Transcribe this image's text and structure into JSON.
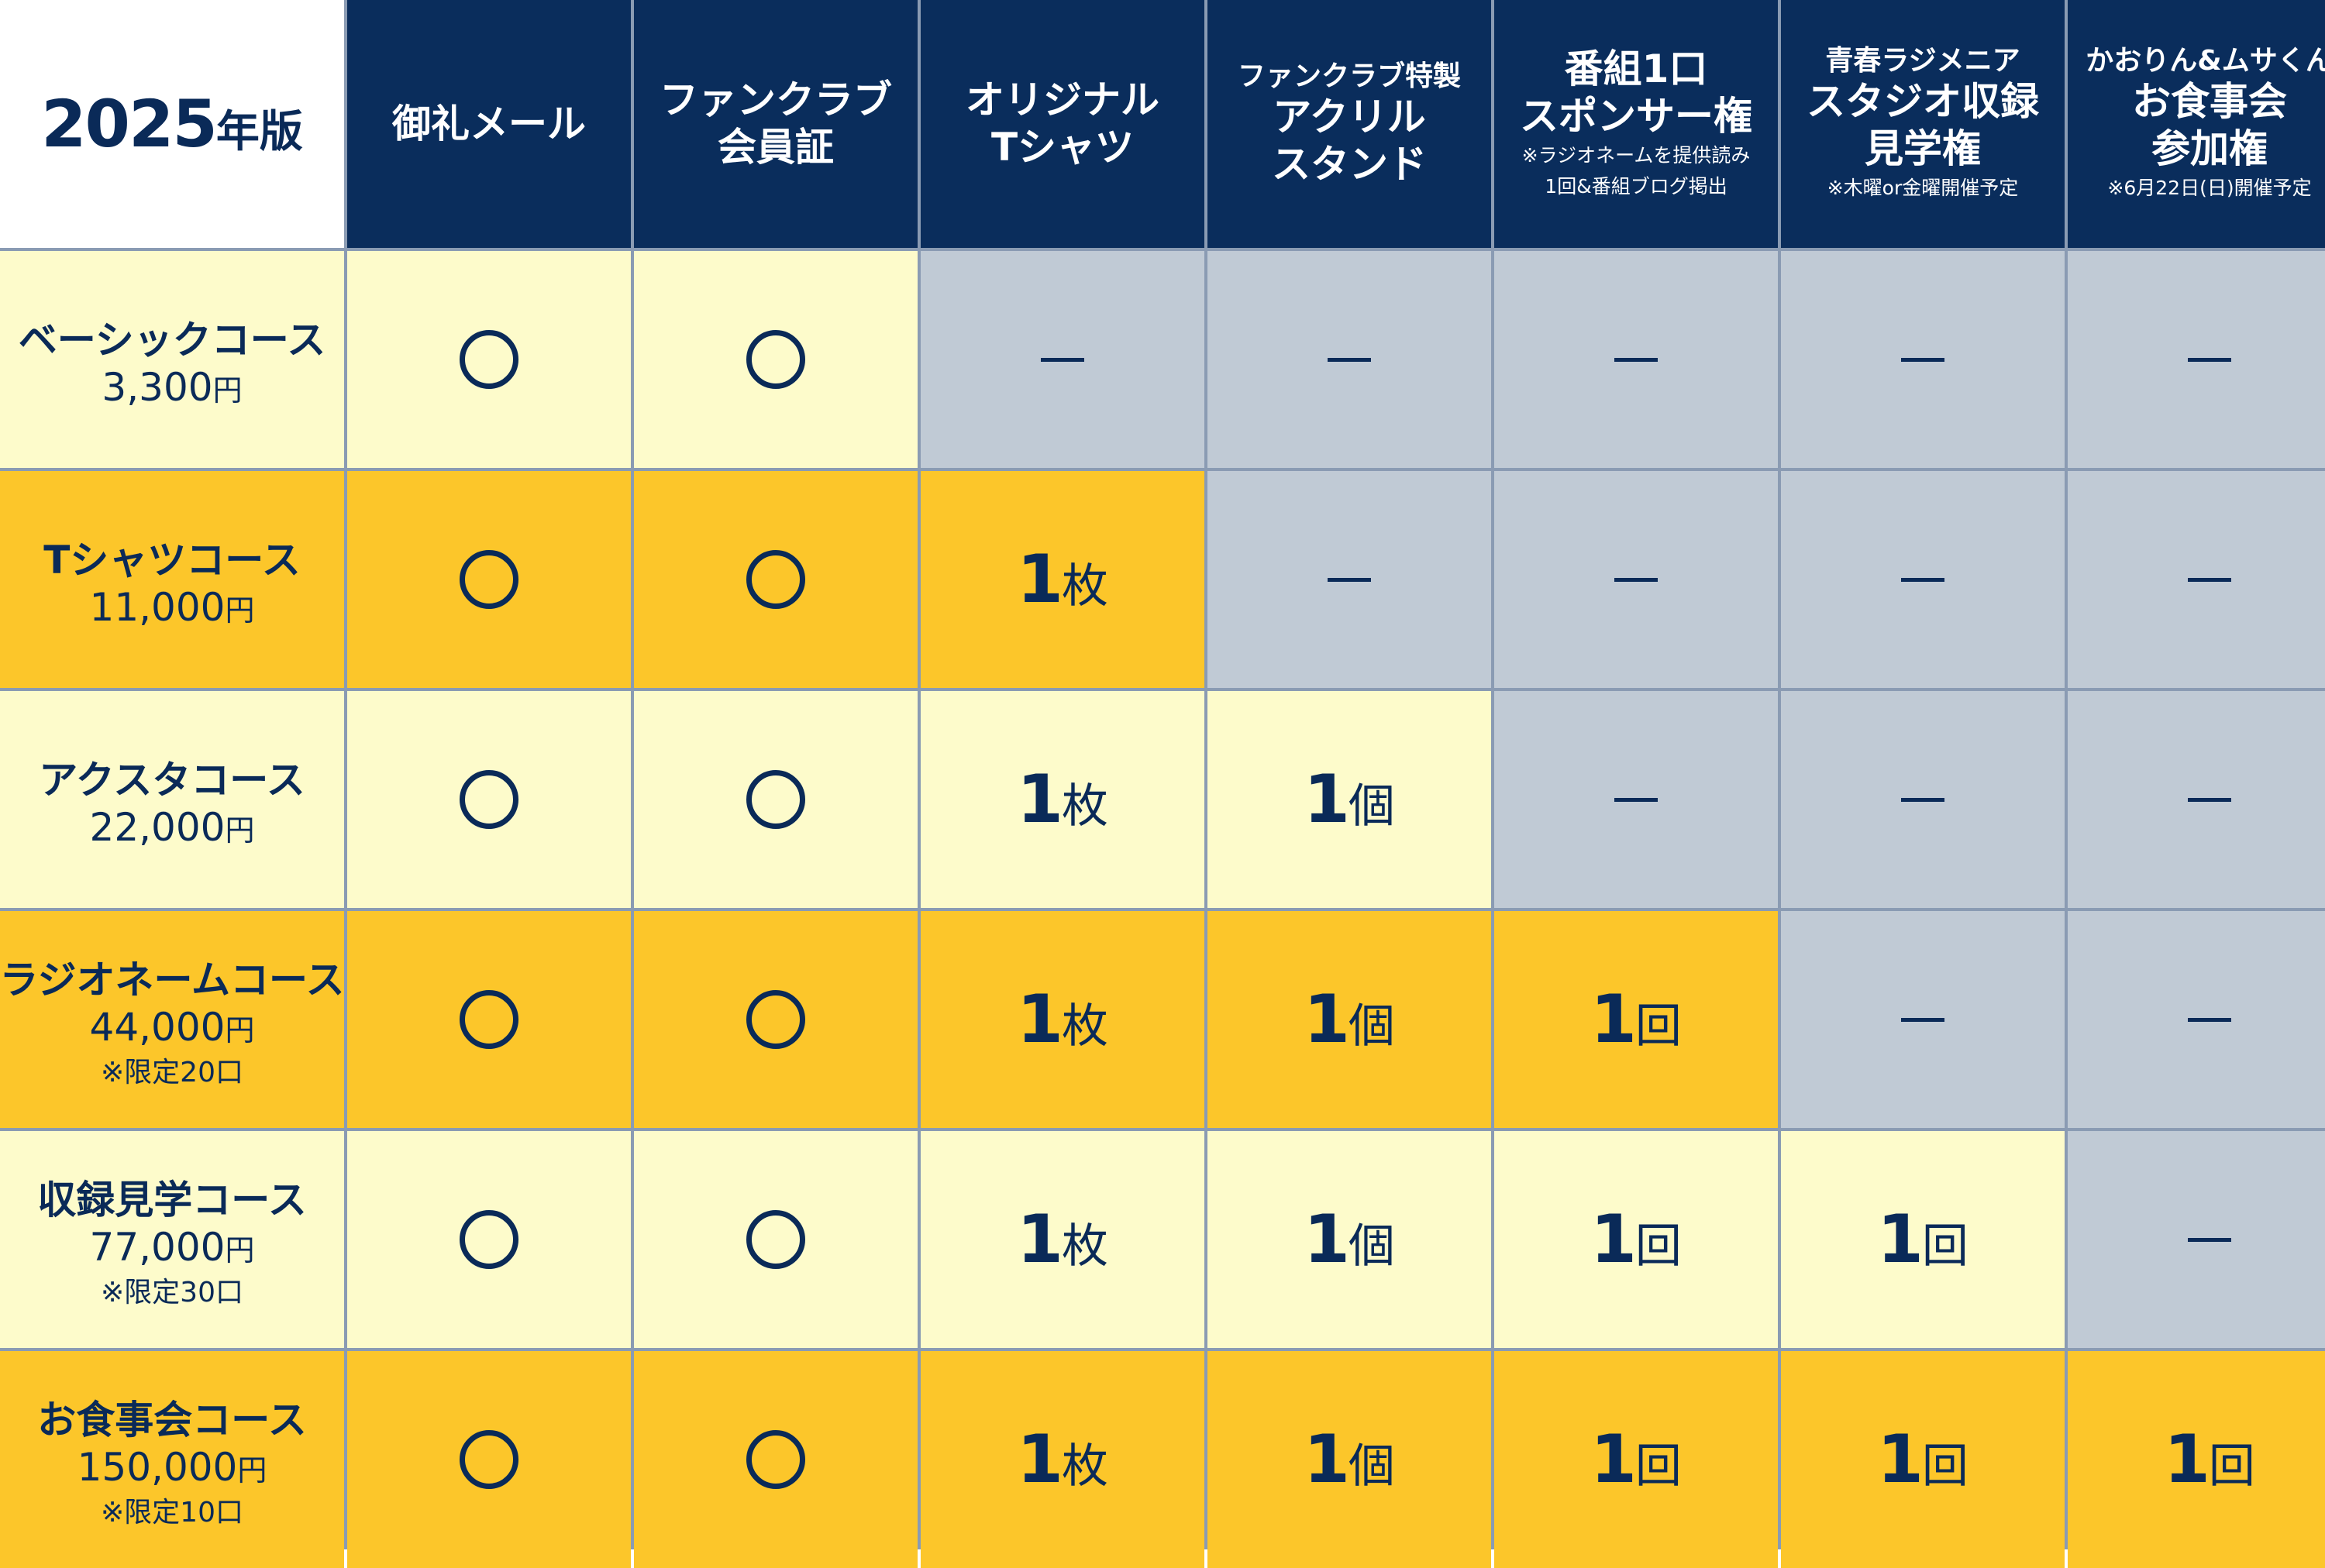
{
  "edition": {
    "year": "2025",
    "suffix": "年版"
  },
  "headers": [
    {
      "lines": [
        {
          "text": "御礼メール",
          "small": false
        }
      ],
      "notes": []
    },
    {
      "lines": [
        {
          "text": "ファンクラブ",
          "small": false
        },
        {
          "text": "会員証",
          "small": false
        }
      ],
      "notes": []
    },
    {
      "lines": [
        {
          "text": "オリジナル",
          "small": false
        },
        {
          "text": "Tシャツ",
          "small": false
        }
      ],
      "notes": []
    },
    {
      "lines": [
        {
          "text": "ファンクラブ特製",
          "small": true
        },
        {
          "text": "アクリル",
          "small": false
        },
        {
          "text": "スタンド",
          "small": false
        }
      ],
      "notes": []
    },
    {
      "lines": [
        {
          "text": "番組1口",
          "small": false
        },
        {
          "text": "スポンサー権",
          "small": false
        }
      ],
      "notes": [
        "※ラジオネームを提供読み",
        "1回&番組ブログ掲出"
      ]
    },
    {
      "lines": [
        {
          "text": "青春ラジメニア",
          "small": true
        },
        {
          "text": "スタジオ収録",
          "small": false
        },
        {
          "text": "見学権",
          "small": false
        }
      ],
      "notes": [
        "※木曜or金曜開催予定"
      ]
    },
    {
      "lines": [
        {
          "text": "かおりん&ムサくん",
          "small": true
        },
        {
          "text": "お食事会",
          "small": false
        },
        {
          "text": "参加権",
          "small": false
        }
      ],
      "notes": [
        "※6月22日(日)開催予定"
      ]
    }
  ],
  "courses": [
    {
      "name": "ベーシックコース",
      "price": "3,300",
      "yen": "円",
      "limit": "",
      "tone": "pale",
      "cells": [
        {
          "type": "circle"
        },
        {
          "type": "circle"
        },
        {
          "type": "dash"
        },
        {
          "type": "dash"
        },
        {
          "type": "dash"
        },
        {
          "type": "dash"
        },
        {
          "type": "dash"
        }
      ]
    },
    {
      "name": "Tシャツコース",
      "price": "11,000",
      "yen": "円",
      "limit": "",
      "tone": "gold",
      "cells": [
        {
          "type": "circle"
        },
        {
          "type": "circle"
        },
        {
          "type": "qty",
          "num": "1",
          "unit": "枚"
        },
        {
          "type": "dash"
        },
        {
          "type": "dash"
        },
        {
          "type": "dash"
        },
        {
          "type": "dash"
        }
      ]
    },
    {
      "name": "アクスタコース",
      "price": "22,000",
      "yen": "円",
      "limit": "",
      "tone": "pale",
      "cells": [
        {
          "type": "circle"
        },
        {
          "type": "circle"
        },
        {
          "type": "qty",
          "num": "1",
          "unit": "枚"
        },
        {
          "type": "qty",
          "num": "1",
          "unit": "個"
        },
        {
          "type": "dash"
        },
        {
          "type": "dash"
        },
        {
          "type": "dash"
        }
      ]
    },
    {
      "name": "ラジオネームコース",
      "price": "44,000",
      "yen": "円",
      "limit": "※限定20口",
      "tone": "gold",
      "cells": [
        {
          "type": "circle"
        },
        {
          "type": "circle"
        },
        {
          "type": "qty",
          "num": "1",
          "unit": "枚"
        },
        {
          "type": "qty",
          "num": "1",
          "unit": "個"
        },
        {
          "type": "qty",
          "num": "1",
          "unit": "回"
        },
        {
          "type": "dash"
        },
        {
          "type": "dash"
        }
      ]
    },
    {
      "name": "収録見学コース",
      "price": "77,000",
      "yen": "円",
      "limit": "※限定30口",
      "tone": "pale",
      "cells": [
        {
          "type": "circle"
        },
        {
          "type": "circle"
        },
        {
          "type": "qty",
          "num": "1",
          "unit": "枚"
        },
        {
          "type": "qty",
          "num": "1",
          "unit": "個"
        },
        {
          "type": "qty",
          "num": "1",
          "unit": "回"
        },
        {
          "type": "qty",
          "num": "1",
          "unit": "回"
        },
        {
          "type": "dash"
        }
      ]
    },
    {
      "name": "お食事会コース",
      "price": "150,000",
      "yen": "円",
      "limit": "※限定10口",
      "tone": "gold",
      "cells": [
        {
          "type": "circle"
        },
        {
          "type": "circle"
        },
        {
          "type": "qty",
          "num": "1",
          "unit": "枚"
        },
        {
          "type": "qty",
          "num": "1",
          "unit": "個"
        },
        {
          "type": "qty",
          "num": "1",
          "unit": "回"
        },
        {
          "type": "qty",
          "num": "1",
          "unit": "回"
        },
        {
          "type": "qty",
          "num": "1",
          "unit": "回"
        }
      ]
    }
  ],
  "colors": {
    "navy": "#0a2d5c",
    "gold": "#fcc62a",
    "pale": "#fdfbcb",
    "grey": "#c0cad5",
    "text": "#0a2a58"
  }
}
